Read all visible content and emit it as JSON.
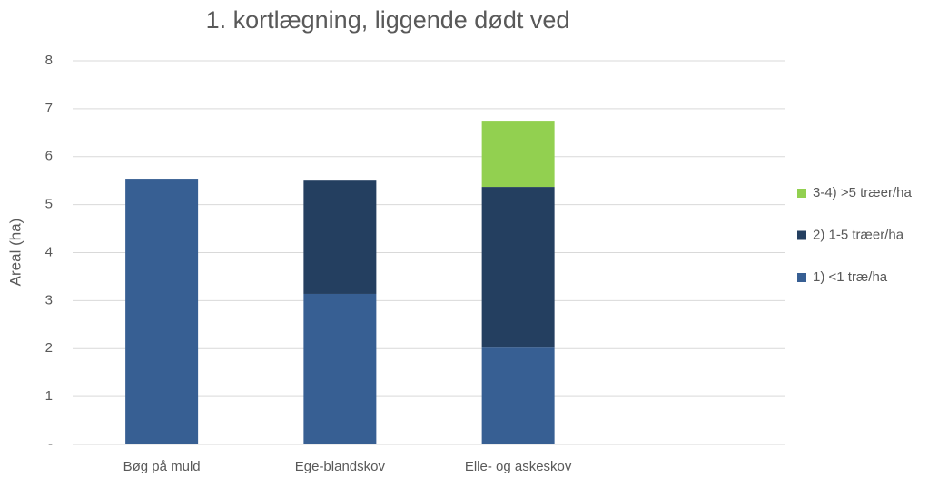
{
  "chart_data": {
    "type": "stacked_bar",
    "title": "1. kortlægning, liggende dødt ved",
    "y_label": "Areal (ha)",
    "categories": [
      "Bøg på muld",
      "Ege-blandskov",
      "Elle- og askeskov",
      null
    ],
    "series": [
      {
        "name": "1) <1 træ/ha",
        "color": "#375f93",
        "values": [
          5.54,
          3.14,
          2.02,
          null
        ]
      },
      {
        "name": "2) 1-5 træer/ha",
        "color": "#243f60",
        "values": [
          0,
          2.36,
          3.35,
          null
        ]
      },
      {
        "name": "3-4) >5 træer/ha",
        "color": "#92d050",
        "values": [
          0,
          0,
          1.38,
          null
        ]
      }
    ],
    "ylim": [
      0,
      8
    ],
    "yticks": [
      {
        "value": 0,
        "label": "-"
      },
      1,
      2,
      3,
      4,
      5,
      6,
      7,
      8
    ],
    "grid": true,
    "legend": "right"
  }
}
